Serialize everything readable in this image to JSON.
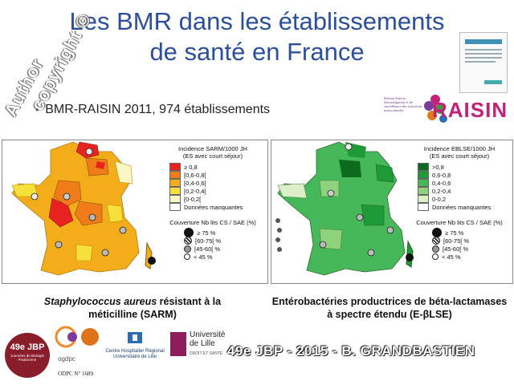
{
  "slide": {
    "title_line1": "Les BMR dans les établissements",
    "title_line2": "de santé en France",
    "watermark_line1": "Author",
    "watermark_line2": "copyright ©",
    "bullet": "BMR-RAISIN 2011, 974 établissements",
    "raisin_logo": "RAISIN",
    "raisin_small": "Réseau d'alerte d'investigation et de surveillance des infections nosocomiales",
    "footer_text": "49e JBP - 2015 - B. GRANDBASTIEN",
    "jbp_badge": "49e JBP",
    "jbp_sub": "Journées de Biologie Praticienne",
    "odpc": "ODPC N° 1689",
    "ogdpc": "ogdpc",
    "chru": "Centre Hospitalier Régional Universitaire de Lille",
    "univ": "Université de Lille",
    "univ_sub": "DROIT ET SANTÉ"
  },
  "map_left": {
    "legend_title1": "Incidence SARM/1000 JH",
    "legend_title2": "(ES avec court séjour)",
    "classes": [
      {
        "label": "≥ 0,8",
        "color": "#e8231f"
      },
      {
        "label": "[0,6-0,8[",
        "color": "#f07c19"
      },
      {
        "label": "[0,4-0,6[",
        "color": "#f3ad1b"
      },
      {
        "label": "[0,2-0,4[",
        "color": "#f7e03a"
      },
      {
        "label": "[0-0,2[",
        "color": "#fbf7c4"
      },
      {
        "label": "Données manquantes",
        "color": "#ffffff"
      }
    ],
    "coverage_title": "Couverture Nb lits CS / SAE (%)",
    "coverage": [
      "≥ 75 %",
      "[60-75[ %",
      "[45-60[ %",
      "< 45 %"
    ],
    "caption_italic": "Staphylococcus aureus",
    "caption_rest": " résistant à la",
    "caption_line2": "méticilline (SARM)"
  },
  "map_right": {
    "legend_title1": "Incidence EBLSE/1000 JH",
    "legend_title2": "(ES avec court séjour)",
    "classes": [
      {
        "label": ">0,8",
        "color": "#0d6b1e"
      },
      {
        "label": "0,6-0,8",
        "color": "#1f9a38"
      },
      {
        "label": "0,4-0,6",
        "color": "#47b85a"
      },
      {
        "label": "0,2-0,4",
        "color": "#8fd27d"
      },
      {
        "label": "0-0,2",
        "color": "#dcefc9"
      },
      {
        "label": "Données manquantes",
        "color": "#ffffff"
      }
    ],
    "coverage_title": "Couverture Nb lits CS / SAE (%)",
    "coverage": [
      "≥ 75 %",
      "[60-75[ %",
      "[45-60[ %",
      "< 45 %"
    ],
    "caption_line1": "Entérobactéries productrices de béta-lactamases",
    "caption_line2": "à spectre étendu (E-βLSE)"
  }
}
